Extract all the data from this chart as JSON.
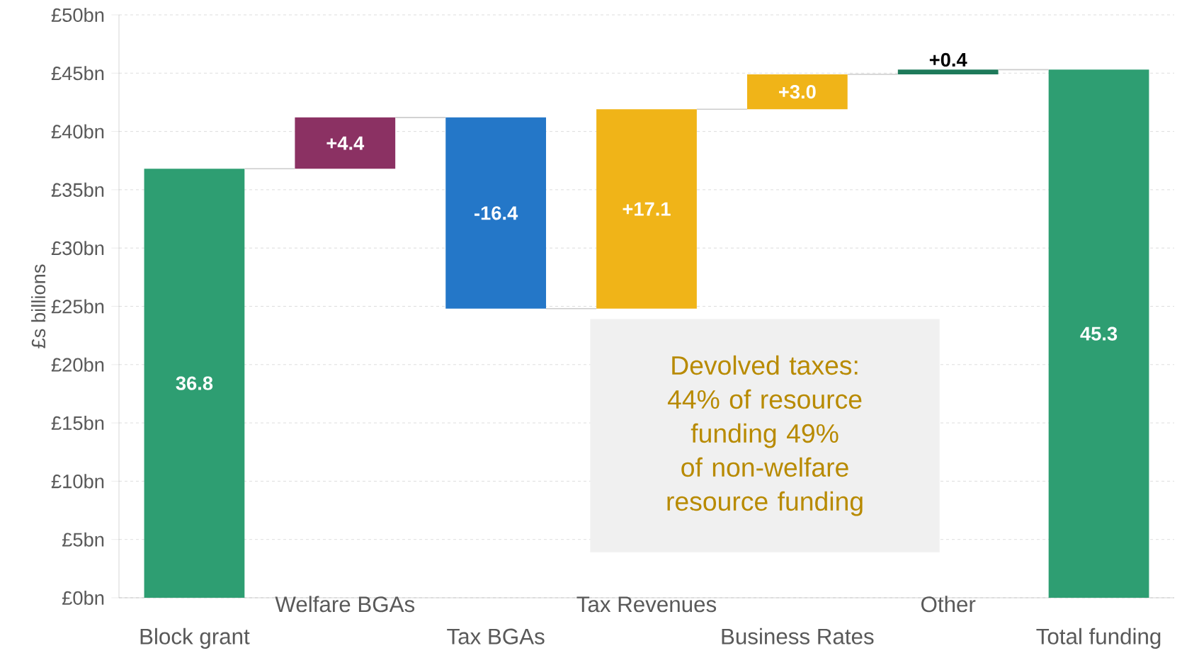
{
  "chart_data": {
    "type": "bar",
    "ylabel": "£s billions",
    "categories": [
      "Block grant",
      "Welfare BGAs",
      "Tax BGAs",
      "Tax Revenues",
      "Business Rates",
      "Other",
      "Total funding"
    ],
    "values": [
      36.8,
      4.4,
      -16.4,
      17.1,
      3.0,
      0.4,
      45.3
    ],
    "base": [
      0,
      36.8,
      41.2,
      24.8,
      41.9,
      44.9,
      0
    ],
    "colors": [
      "#2e9e72",
      "#8b3163",
      "#2477c8",
      "#f0b418",
      "#f0b418",
      "#1e7a5a",
      "#2e9e72"
    ],
    "value_labels": [
      "36.8",
      "+4.4",
      "-16.4",
      "+17.1",
      "+3.0",
      "+0.4",
      "45.3"
    ],
    "ylim": [
      0,
      50
    ],
    "yticks": [
      {
        "value": 0,
        "label": "£0bn"
      },
      {
        "value": 5,
        "label": "£5bn"
      },
      {
        "value": 10,
        "label": "£10bn"
      },
      {
        "value": 15,
        "label": "£15bn"
      },
      {
        "value": 20,
        "label": "£20bn"
      },
      {
        "value": 25,
        "label": "£25bn"
      },
      {
        "value": 30,
        "label": "£30bn"
      },
      {
        "value": 35,
        "label": "£35bn"
      },
      {
        "value": 40,
        "label": "£40bn"
      },
      {
        "value": 45,
        "label": "£45bn"
      },
      {
        "value": 50,
        "label": "£50bn"
      }
    ],
    "grid": "y",
    "annotations": [
      "Devolved taxes: 44% of resource funding 49% of non-welfare resource funding"
    ]
  }
}
